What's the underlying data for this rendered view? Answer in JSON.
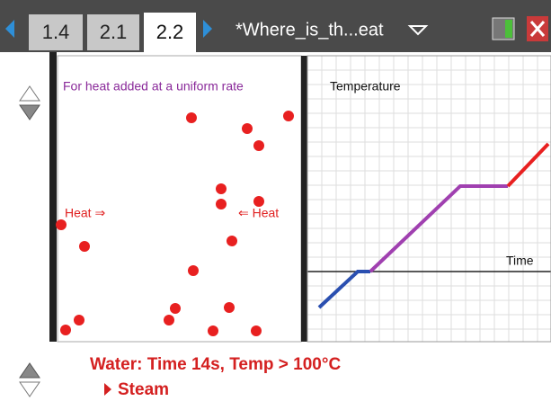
{
  "tabs": [
    "1.4",
    "2.1",
    "2.2"
  ],
  "document_title": "*Where_is_th...eat",
  "particles_panel": {
    "caption": "For heat added at a uniform rate",
    "left_label": "Heat ⇒",
    "right_label": "⇐ Heat"
  },
  "graph_panel": {
    "y_axis_label": "Temperature",
    "x_axis_label": "Time"
  },
  "status": {
    "line": "Water: Time 14s, Temp > 100°C",
    "phase": "Steam"
  }
}
